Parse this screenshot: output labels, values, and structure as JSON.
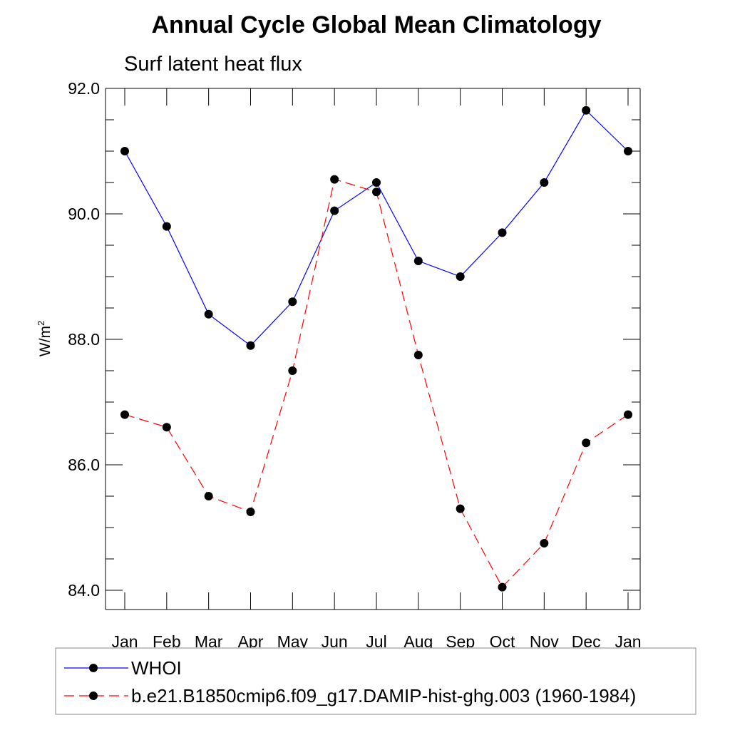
{
  "chart_data": {
    "type": "line",
    "title": "Annual Cycle Global Mean Climatology",
    "subtitle": "Surf latent heat flux",
    "ylabel_base": "W/m",
    "ylabel_sup": "2",
    "xlabel": "",
    "categories": [
      "Jan",
      "Feb",
      "Mar",
      "Apr",
      "May",
      "Jun",
      "Jul",
      "Aug",
      "Sep",
      "Oct",
      "Nov",
      "Dec",
      "Jan"
    ],
    "ylim": [
      84.0,
      92.0
    ],
    "yticks": [
      "84.0",
      "86.0",
      "88.0",
      "90.0",
      "92.0"
    ],
    "legend_position": "bottom",
    "series": [
      {
        "name": "WHOI",
        "color": "#0000ff",
        "dash": "solid",
        "marker": "circle",
        "values": [
          91.0,
          89.8,
          88.4,
          87.9,
          88.6,
          90.05,
          90.5,
          89.25,
          89.0,
          89.7,
          90.5,
          91.65,
          91.0
        ]
      },
      {
        "name": "b.e21.B1850cmip6.f09_g17.DAMIP-hist-ghg.003 (1960-1984)",
        "color": "#ff0000",
        "dash": "dashed",
        "marker": "circle",
        "values": [
          86.8,
          86.6,
          85.5,
          85.25,
          87.5,
          90.55,
          90.35,
          87.75,
          85.3,
          84.05,
          84.75,
          86.35,
          86.8
        ]
      }
    ]
  }
}
